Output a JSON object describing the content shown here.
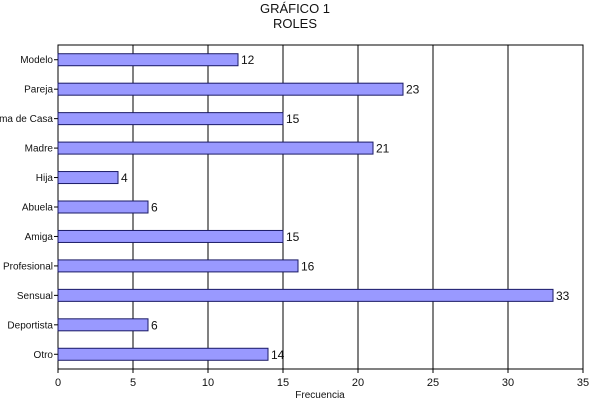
{
  "chart_data": {
    "type": "bar",
    "orientation": "horizontal",
    "title": "GRÁFICO 1",
    "subtitle": "ROLES",
    "xlabel": "Frecuencia",
    "ylabel": "",
    "categories": [
      "Modelo",
      "Pareja",
      "Ama de Casa",
      "Madre",
      "Hija",
      "Abuela",
      "Amiga",
      "Profesional",
      "Sensual",
      "Deportista",
      "Otro"
    ],
    "values": [
      12,
      23,
      15,
      21,
      4,
      6,
      15,
      16,
      33,
      6,
      14
    ],
    "value_labels": [
      "12",
      "23",
      "15",
      "21",
      "4",
      "6",
      "15",
      "16",
      "33",
      "6",
      "14"
    ],
    "xlim": [
      0,
      35
    ],
    "xticks": [
      0,
      5,
      10,
      15,
      20,
      25,
      30,
      35
    ],
    "xtick_labels": [
      "0",
      "5",
      "10",
      "15",
      "20",
      "25",
      "30",
      "35"
    ],
    "grid": "vertical",
    "legend": "none",
    "colors": {
      "bar_fill": "#9999ff",
      "bar_stroke": "#1a1a66",
      "grid": "#000000",
      "axis": "#000000"
    }
  }
}
